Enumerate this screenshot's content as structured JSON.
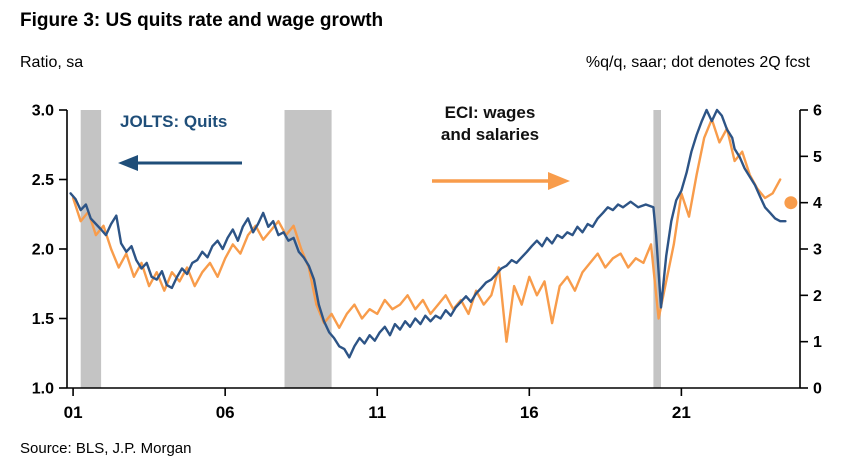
{
  "header": {
    "title": "Figure 3: US quits rate and wage growth",
    "left_caption": "Ratio, sa",
    "right_caption": "%q/q, saar; dot denotes 2Q fcst"
  },
  "annotations": {
    "jolts_label": "JOLTS: Quits",
    "eci_line1": "ECI: wages",
    "eci_line2": "and salaries"
  },
  "source": "Source: BLS, J.P. Morgan",
  "colors": {
    "quits_blue": "#2D5486",
    "eci_orange": "#F89C4B",
    "recession_gray": "#C4C4C4",
    "axis_black": "#000000",
    "arrow_blue": "#1F4E79"
  },
  "chart_data": {
    "type": "line",
    "title": "Figure 3: US quits rate and wage growth",
    "left_axis": {
      "label": "Ratio, sa",
      "range": [
        1.0,
        3.0
      ],
      "tick_values": [
        1.0,
        1.5,
        2.0,
        2.5,
        3.0
      ],
      "tick_labels": [
        "1.0",
        "1.5",
        "2.0",
        "2.5",
        "3.0"
      ]
    },
    "right_axis": {
      "label": "%q/q, saar",
      "range": [
        0,
        6
      ],
      "tick_values": [
        0,
        1,
        2,
        3,
        4,
        5,
        6
      ],
      "tick_labels": [
        "0",
        "1",
        "2",
        "3",
        "4",
        "5",
        "6"
      ]
    },
    "x_axis": {
      "range": [
        2000.8,
        2024.9
      ],
      "tick_values": [
        2001,
        2006,
        2011,
        2016,
        2021
      ],
      "tick_labels": [
        "01",
        "06",
        "11",
        "16",
        "21"
      ]
    },
    "recessions": [
      [
        2001.25,
        2001.92
      ],
      [
        2007.95,
        2009.5
      ],
      [
        2020.08,
        2020.33
      ]
    ],
    "series": [
      {
        "name": "ECI: wages and salaries",
        "axis": "right",
        "color": "#F89C4B",
        "points": [
          [
            2001.0,
            4.1
          ],
          [
            2001.25,
            3.6
          ],
          [
            2001.5,
            3.8
          ],
          [
            2001.75,
            3.3
          ],
          [
            2002.0,
            3.5
          ],
          [
            2002.25,
            3.0
          ],
          [
            2002.5,
            2.6
          ],
          [
            2002.75,
            2.9
          ],
          [
            2003.0,
            2.4
          ],
          [
            2003.25,
            2.7
          ],
          [
            2003.5,
            2.2
          ],
          [
            2003.75,
            2.5
          ],
          [
            2004.0,
            2.1
          ],
          [
            2004.25,
            2.5
          ],
          [
            2004.5,
            2.3
          ],
          [
            2004.75,
            2.6
          ],
          [
            2005.0,
            2.2
          ],
          [
            2005.25,
            2.5
          ],
          [
            2005.5,
            2.7
          ],
          [
            2005.75,
            2.4
          ],
          [
            2006.0,
            2.8
          ],
          [
            2006.25,
            3.1
          ],
          [
            2006.5,
            2.9
          ],
          [
            2006.75,
            3.3
          ],
          [
            2007.0,
            3.5
          ],
          [
            2007.25,
            3.2
          ],
          [
            2007.5,
            3.4
          ],
          [
            2007.75,
            3.6
          ],
          [
            2008.0,
            3.3
          ],
          [
            2008.25,
            3.5
          ],
          [
            2008.5,
            3.0
          ],
          [
            2008.75,
            2.6
          ],
          [
            2009.0,
            1.8
          ],
          [
            2009.25,
            1.4
          ],
          [
            2009.5,
            1.6
          ],
          [
            2009.75,
            1.3
          ],
          [
            2010.0,
            1.6
          ],
          [
            2010.25,
            1.8
          ],
          [
            2010.5,
            1.5
          ],
          [
            2010.75,
            1.7
          ],
          [
            2011.0,
            1.6
          ],
          [
            2011.25,
            1.9
          ],
          [
            2011.5,
            1.7
          ],
          [
            2011.75,
            1.8
          ],
          [
            2012.0,
            2.0
          ],
          [
            2012.25,
            1.7
          ],
          [
            2012.5,
            1.9
          ],
          [
            2012.75,
            1.6
          ],
          [
            2013.0,
            1.8
          ],
          [
            2013.25,
            2.0
          ],
          [
            2013.5,
            1.7
          ],
          [
            2013.75,
            1.9
          ],
          [
            2014.0,
            1.6
          ],
          [
            2014.25,
            2.1
          ],
          [
            2014.5,
            1.8
          ],
          [
            2014.75,
            2.0
          ],
          [
            2015.0,
            2.6
          ],
          [
            2015.25,
            1.0
          ],
          [
            2015.5,
            2.2
          ],
          [
            2015.75,
            1.8
          ],
          [
            2016.0,
            2.4
          ],
          [
            2016.25,
            2.0
          ],
          [
            2016.5,
            2.3
          ],
          [
            2016.75,
            1.4
          ],
          [
            2017.0,
            2.2
          ],
          [
            2017.25,
            2.4
          ],
          [
            2017.5,
            2.1
          ],
          [
            2017.75,
            2.5
          ],
          [
            2018.0,
            2.7
          ],
          [
            2018.25,
            2.9
          ],
          [
            2018.5,
            2.6
          ],
          [
            2018.75,
            2.8
          ],
          [
            2019.0,
            2.9
          ],
          [
            2019.25,
            2.6
          ],
          [
            2019.5,
            2.8
          ],
          [
            2019.75,
            2.7
          ],
          [
            2020.0,
            3.1
          ],
          [
            2020.25,
            1.5
          ],
          [
            2020.5,
            2.3
          ],
          [
            2020.75,
            3.1
          ],
          [
            2021.0,
            4.2
          ],
          [
            2021.25,
            3.7
          ],
          [
            2021.5,
            4.6
          ],
          [
            2021.75,
            5.4
          ],
          [
            2022.0,
            5.8
          ],
          [
            2022.25,
            5.3
          ],
          [
            2022.5,
            5.6
          ],
          [
            2022.75,
            4.9
          ],
          [
            2023.0,
            5.1
          ],
          [
            2023.25,
            4.6
          ],
          [
            2023.5,
            4.3
          ],
          [
            2023.75,
            4.1
          ],
          [
            2024.0,
            4.2
          ],
          [
            2024.25,
            4.5
          ]
        ]
      },
      {
        "name": "JOLTS: Quits",
        "axis": "left",
        "color": "#2D5486",
        "points": [
          [
            2000.92,
            2.4
          ],
          [
            2001.08,
            2.36
          ],
          [
            2001.25,
            2.28
          ],
          [
            2001.42,
            2.32
          ],
          [
            2001.58,
            2.22
          ],
          [
            2001.75,
            2.18
          ],
          [
            2001.92,
            2.14
          ],
          [
            2002.08,
            2.1
          ],
          [
            2002.25,
            2.18
          ],
          [
            2002.42,
            2.24
          ],
          [
            2002.58,
            2.04
          ],
          [
            2002.75,
            1.98
          ],
          [
            2002.92,
            2.02
          ],
          [
            2003.08,
            1.92
          ],
          [
            2003.25,
            1.86
          ],
          [
            2003.42,
            1.9
          ],
          [
            2003.58,
            1.8
          ],
          [
            2003.75,
            1.78
          ],
          [
            2003.92,
            1.84
          ],
          [
            2004.08,
            1.74
          ],
          [
            2004.25,
            1.72
          ],
          [
            2004.42,
            1.8
          ],
          [
            2004.58,
            1.86
          ],
          [
            2004.75,
            1.82
          ],
          [
            2004.92,
            1.9
          ],
          [
            2005.08,
            1.92
          ],
          [
            2005.25,
            1.98
          ],
          [
            2005.42,
            1.94
          ],
          [
            2005.58,
            2.02
          ],
          [
            2005.75,
            2.06
          ],
          [
            2005.92,
            2.0
          ],
          [
            2006.08,
            2.08
          ],
          [
            2006.25,
            2.14
          ],
          [
            2006.42,
            2.06
          ],
          [
            2006.58,
            2.16
          ],
          [
            2006.75,
            2.22
          ],
          [
            2006.92,
            2.12
          ],
          [
            2007.08,
            2.18
          ],
          [
            2007.25,
            2.26
          ],
          [
            2007.42,
            2.16
          ],
          [
            2007.58,
            2.2
          ],
          [
            2007.75,
            2.1
          ],
          [
            2007.92,
            2.12
          ],
          [
            2008.08,
            2.06
          ],
          [
            2008.25,
            2.08
          ],
          [
            2008.42,
            1.98
          ],
          [
            2008.58,
            1.94
          ],
          [
            2008.75,
            1.88
          ],
          [
            2008.92,
            1.78
          ],
          [
            2009.08,
            1.6
          ],
          [
            2009.25,
            1.48
          ],
          [
            2009.42,
            1.4
          ],
          [
            2009.58,
            1.36
          ],
          [
            2009.75,
            1.3
          ],
          [
            2009.92,
            1.28
          ],
          [
            2010.08,
            1.22
          ],
          [
            2010.25,
            1.3
          ],
          [
            2010.42,
            1.36
          ],
          [
            2010.58,
            1.32
          ],
          [
            2010.75,
            1.38
          ],
          [
            2010.92,
            1.34
          ],
          [
            2011.08,
            1.4
          ],
          [
            2011.25,
            1.44
          ],
          [
            2011.42,
            1.38
          ],
          [
            2011.58,
            1.46
          ],
          [
            2011.75,
            1.42
          ],
          [
            2011.92,
            1.48
          ],
          [
            2012.08,
            1.44
          ],
          [
            2012.25,
            1.5
          ],
          [
            2012.42,
            1.46
          ],
          [
            2012.58,
            1.52
          ],
          [
            2012.75,
            1.48
          ],
          [
            2012.92,
            1.52
          ],
          [
            2013.08,
            1.5
          ],
          [
            2013.25,
            1.56
          ],
          [
            2013.42,
            1.52
          ],
          [
            2013.58,
            1.58
          ],
          [
            2013.75,
            1.62
          ],
          [
            2013.92,
            1.66
          ],
          [
            2014.08,
            1.62
          ],
          [
            2014.25,
            1.68
          ],
          [
            2014.42,
            1.72
          ],
          [
            2014.58,
            1.76
          ],
          [
            2014.75,
            1.78
          ],
          [
            2014.92,
            1.82
          ],
          [
            2015.08,
            1.86
          ],
          [
            2015.25,
            1.88
          ],
          [
            2015.42,
            1.92
          ],
          [
            2015.58,
            1.9
          ],
          [
            2015.75,
            1.94
          ],
          [
            2015.92,
            1.98
          ],
          [
            2016.08,
            2.02
          ],
          [
            2016.25,
            2.06
          ],
          [
            2016.42,
            2.02
          ],
          [
            2016.58,
            2.08
          ],
          [
            2016.75,
            2.04
          ],
          [
            2016.92,
            2.1
          ],
          [
            2017.08,
            2.08
          ],
          [
            2017.25,
            2.12
          ],
          [
            2017.42,
            2.1
          ],
          [
            2017.58,
            2.16
          ],
          [
            2017.75,
            2.12
          ],
          [
            2017.92,
            2.18
          ],
          [
            2018.08,
            2.16
          ],
          [
            2018.25,
            2.22
          ],
          [
            2018.42,
            2.26
          ],
          [
            2018.58,
            2.3
          ],
          [
            2018.75,
            2.28
          ],
          [
            2018.92,
            2.32
          ],
          [
            2019.08,
            2.3
          ],
          [
            2019.33,
            2.34
          ],
          [
            2019.58,
            2.3
          ],
          [
            2019.83,
            2.32
          ],
          [
            2020.08,
            2.3
          ],
          [
            2020.17,
            2.1
          ],
          [
            2020.33,
            1.58
          ],
          [
            2020.5,
            1.95
          ],
          [
            2020.67,
            2.2
          ],
          [
            2020.83,
            2.35
          ],
          [
            2021.0,
            2.42
          ],
          [
            2021.17,
            2.55
          ],
          [
            2021.33,
            2.7
          ],
          [
            2021.5,
            2.82
          ],
          [
            2021.67,
            2.92
          ],
          [
            2021.83,
            3.0
          ],
          [
            2022.0,
            2.92
          ],
          [
            2022.17,
            3.0
          ],
          [
            2022.33,
            2.96
          ],
          [
            2022.5,
            2.86
          ],
          [
            2022.67,
            2.8
          ],
          [
            2022.75,
            2.72
          ],
          [
            2022.92,
            2.66
          ],
          [
            2023.08,
            2.58
          ],
          [
            2023.25,
            2.52
          ],
          [
            2023.42,
            2.46
          ],
          [
            2023.58,
            2.38
          ],
          [
            2023.75,
            2.3
          ],
          [
            2023.92,
            2.26
          ],
          [
            2024.08,
            2.22
          ],
          [
            2024.25,
            2.2
          ],
          [
            2024.42,
            2.2
          ]
        ]
      }
    ],
    "forecast_dot": {
      "x": 2024.6,
      "value": 4.0,
      "axis": "right",
      "meaning": "2Q fcst"
    }
  }
}
